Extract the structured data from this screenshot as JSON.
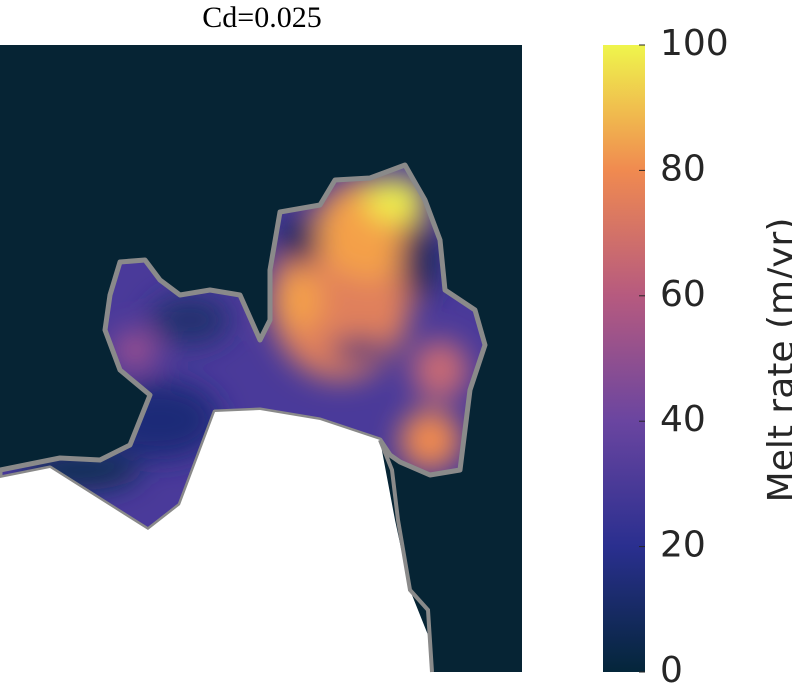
{
  "chart_data": {
    "type": "heatmap",
    "title": "Cd=0.025",
    "colorbar_label": "Melt rate (m/yr)",
    "clim": [
      0,
      100
    ],
    "cticks": [
      0,
      20,
      40,
      60,
      80,
      100
    ],
    "colormap": [
      "#04263a",
      "#2a2f8f",
      "#6a45a0",
      "#b65a7f",
      "#f08a50",
      "#eff54c"
    ]
  }
}
